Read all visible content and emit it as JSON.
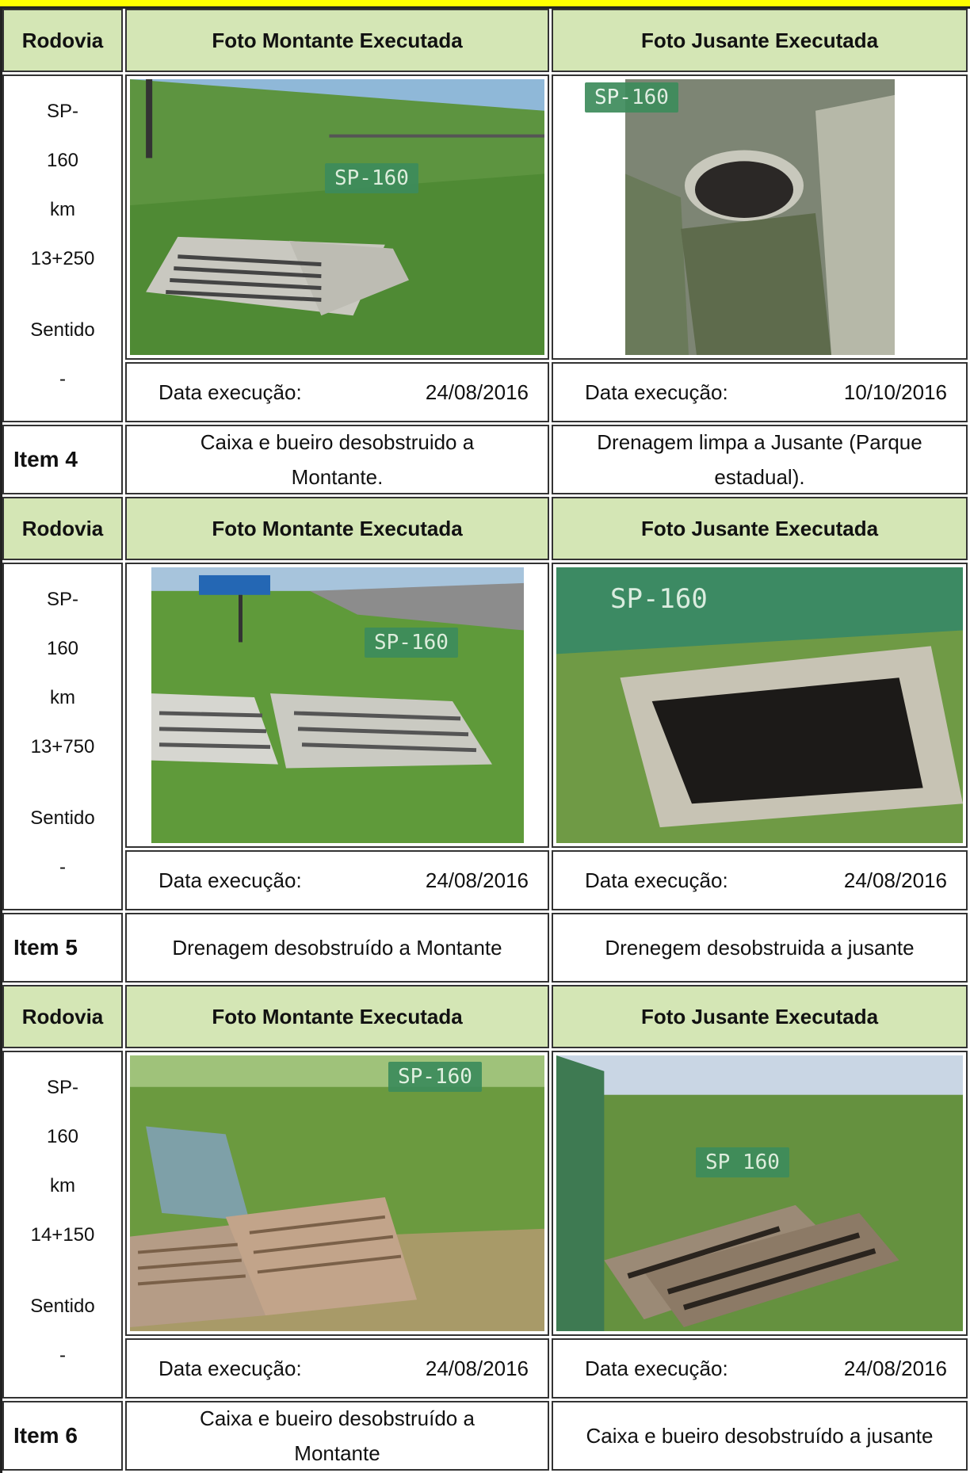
{
  "headers": {
    "col1": "Rodovia",
    "col2": "Foto Montante Executada",
    "col3": "Foto Jusante Executada"
  },
  "entries": [
    {
      "location": {
        "line1": "SP-",
        "line2": "160",
        "line3": "km",
        "line4": "13+250",
        "line5": "Sentido",
        "line6": "-"
      },
      "montante": {
        "date_label": "Data execução:",
        "date": "24/08/2016",
        "photo_icon": "drain-grate-photo",
        "board_text": "SP-160"
      },
      "jusante": {
        "date_label": "Data execução:",
        "date": "10/10/2016",
        "photo_icon": "culvert-pipe-photo",
        "board_text": "SP-160"
      },
      "item_label": "Item 4",
      "desc_montante": "Caixa e bueiro  desobstruido a Montante.",
      "desc_jusante": "Drenagem limpa a Jusante (Parque estadual)."
    },
    {
      "location": {
        "line1": "SP-",
        "line2": "160",
        "line3": "km",
        "line4": "13+750",
        "line5": "Sentido",
        "line6": "-"
      },
      "montante": {
        "date_label": "Data execução:",
        "date": "24/08/2016",
        "photo_icon": "drain-grate-photo",
        "board_text": "SP-160"
      },
      "jusante": {
        "date_label": "Data execução:",
        "date": "24/08/2016",
        "photo_icon": "drain-box-photo",
        "board_text": "SP-160"
      },
      "item_label": "Item 5",
      "desc_montante": "Drenagem desobstruído a Montante",
      "desc_jusante": "Drenegem desobstruida a jusante"
    },
    {
      "location": {
        "line1": "SP-",
        "line2": "160",
        "line3": "km",
        "line4": "14+150",
        "line5": "Sentido",
        "line6": "-"
      },
      "montante": {
        "date_label": "Data execução:",
        "date": "24/08/2016",
        "photo_icon": "drain-grate-photo",
        "board_text": "SP-160"
      },
      "jusante": {
        "date_label": "Data execução:",
        "date": "24/08/2016",
        "photo_icon": "drain-grate-photo",
        "board_text": "SP 160"
      },
      "item_label": "Item 6",
      "desc_montante": "Caixa e bueiro desobstruído a Montante",
      "desc_jusante": "Caixa e bueiro desobstruído a jusante"
    }
  ],
  "colors": {
    "header_bg": "#d4e6b5",
    "top_bar": "#ffff00",
    "grass": "#4f8a34",
    "board": "#3d8c5c"
  }
}
